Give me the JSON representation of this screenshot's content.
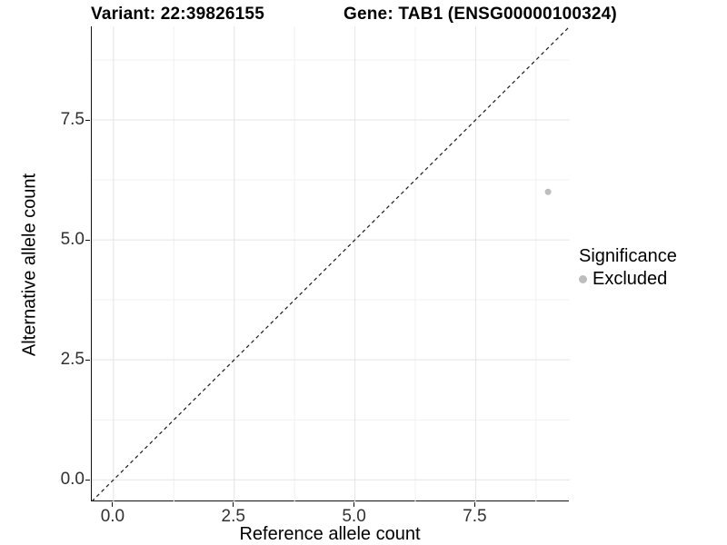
{
  "title": {
    "left": "Variant: 22:39826155",
    "right": "Gene: TAB1 (ENSG00000100324)"
  },
  "chart_data": {
    "type": "scatter",
    "title": "Variant: 22:39826155    Gene: TAB1 (ENSG00000100324)",
    "xlabel": "Reference allele count",
    "ylabel": "Alternative allele count",
    "xlim": [
      -0.45,
      9.45
    ],
    "ylim": [
      -0.45,
      9.45
    ],
    "x_ticks": [
      0.0,
      2.5,
      5.0,
      7.5
    ],
    "x_tick_labels": [
      "0.0",
      "2.5",
      "5.0",
      "7.5"
    ],
    "y_ticks": [
      0.0,
      2.5,
      5.0,
      7.5
    ],
    "y_tick_labels": [
      "0.0",
      "2.5",
      "5.0",
      "7.5"
    ],
    "minor_x_ticks": [
      1.25,
      3.75,
      6.25,
      8.75
    ],
    "minor_y_ticks": [
      1.25,
      3.75,
      6.25,
      8.75
    ],
    "grid": true,
    "series": [
      {
        "name": "Excluded",
        "color": "#bdbdbd",
        "points": [
          {
            "x": 9,
            "y": 6
          }
        ]
      }
    ],
    "reference_line": {
      "type": "abline",
      "slope": 1,
      "intercept": 0,
      "style": "dashed",
      "color": "#1a1a1a"
    },
    "legend": {
      "title": "Significance",
      "position": "right",
      "items": [
        {
          "label": "Excluded",
          "color": "#bdbdbd"
        }
      ]
    }
  },
  "colors": {
    "background": "#ffffff",
    "axis_line": "#111111",
    "major_grid": "#e4e4e4",
    "minor_grid": "#f1f1f1",
    "tick_text": "#303030",
    "point": "#bdbdbd"
  }
}
